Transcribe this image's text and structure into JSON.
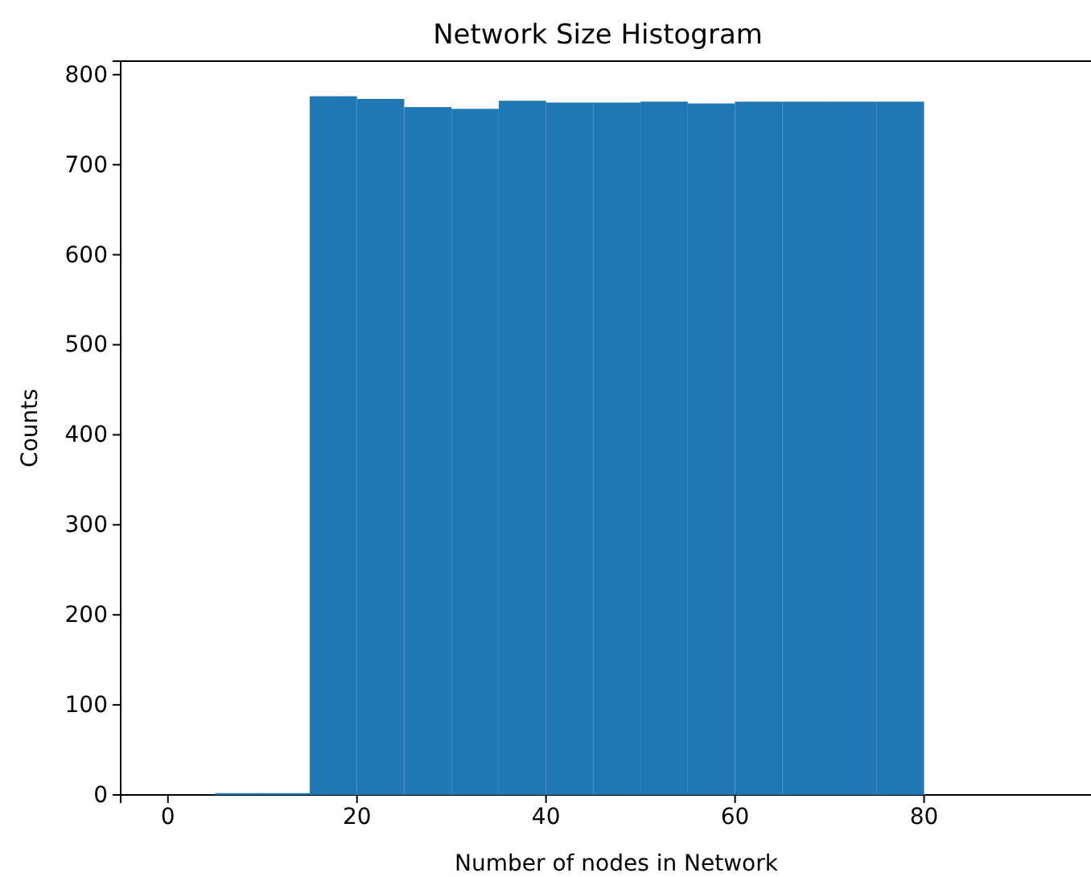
{
  "chart_data": {
    "type": "histogram",
    "title": "Network Size Histogram",
    "xlabel": "Number of nodes in Network",
    "ylabel": "Counts",
    "bins": [
      5,
      10,
      15,
      20,
      25,
      30,
      35,
      40,
      45,
      50,
      55,
      60,
      65,
      70,
      75,
      80
    ],
    "values": [
      2,
      2,
      776,
      773,
      764,
      762,
      771,
      769,
      769,
      770,
      768,
      770,
      770,
      770,
      770
    ],
    "color": "#1f77b4",
    "xlim": [
      -5,
      98
    ],
    "ylim": [
      0,
      815
    ],
    "xticks": [
      0,
      20,
      40,
      60,
      80
    ],
    "yticks": [
      0,
      100,
      200,
      300,
      400,
      500,
      600,
      700,
      800
    ]
  }
}
